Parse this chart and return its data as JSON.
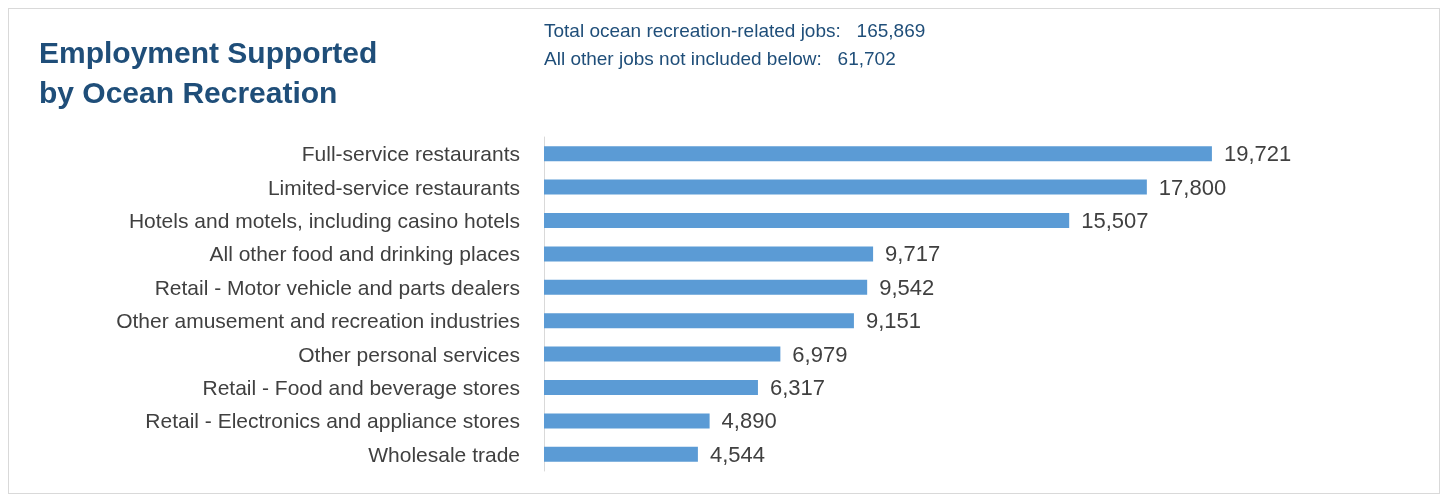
{
  "chart_data": {
    "type": "bar",
    "orientation": "horizontal",
    "title": "Employment Supported\nby Ocean Recreation",
    "annotations": [
      "Total ocean recreation-related jobs:   165,869",
      "All other jobs not included below:   61,702"
    ],
    "categories": [
      "Full-service restaurants",
      "Limited-service restaurants",
      "Hotels and motels, including casino hotels",
      "All other food and drinking places",
      "Retail - Motor vehicle and parts dealers",
      "Other amusement and recreation industries",
      "Other personal services",
      "Retail - Food and beverage stores",
      "Retail - Electronics and appliance stores",
      "Wholesale trade"
    ],
    "values": [
      19721,
      17800,
      15507,
      9717,
      9542,
      9151,
      6979,
      6317,
      4890,
      4544
    ],
    "value_labels": [
      "19,721",
      "17,800",
      "15,507",
      "9,717",
      "9,542",
      "9,151",
      "6,979",
      "6,317",
      "4,890",
      "4,544"
    ],
    "color": "#5b9bd5"
  }
}
